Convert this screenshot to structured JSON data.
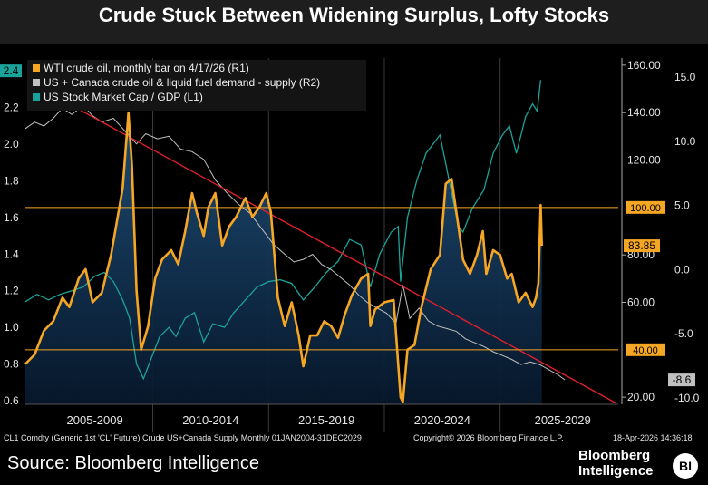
{
  "chart_data": {
    "type": "line",
    "title": "Crude Stuck Between Widening Surplus, Lofty Stocks",
    "x_categories": [
      "2005-2009",
      "2010-2014",
      "2015-2019",
      "2020-2024",
      "2025-2029"
    ],
    "axes": {
      "l1": {
        "ticks": [
          "2.2",
          "2.0",
          "1.8",
          "1.6",
          "1.4",
          "1.2",
          "1.0",
          "0.8",
          "0.6"
        ],
        "range": [
          0.58,
          2.47
        ]
      },
      "r1": {
        "ticks": [
          "160.00",
          "140.00",
          "120.00",
          "80.00",
          "60.00",
          "20.00"
        ],
        "range": [
          17,
          163
        ]
      },
      "r2": {
        "ticks": [
          "15.0",
          "10.0",
          "5.0",
          "0.0",
          "-5.0",
          "-10.0"
        ],
        "range": [
          -10.5,
          16.5
        ]
      }
    },
    "legend": [
      {
        "label": "WTI crude oil, monthly bar on 4/17/26 (R1)",
        "color": "#f5a623"
      },
      {
        "label": "US + Canada crude oil & liquid fuel demand - supply (R2)",
        "color": "#c0c0c0"
      },
      {
        "label": "US Stock Market Cap / GDP (L1)",
        "color": "#1aa39a"
      }
    ],
    "series": [
      {
        "name": "WTI crude oil, monthly bar on 4/17/26 (R1)",
        "axis": "r1",
        "color": "#f5a623",
        "points": [
          [
            2004.0,
            34
          ],
          [
            2004.4,
            38
          ],
          [
            2004.8,
            48
          ],
          [
            2005.2,
            52
          ],
          [
            2005.6,
            62
          ],
          [
            2005.9,
            58
          ],
          [
            2006.3,
            70
          ],
          [
            2006.6,
            74
          ],
          [
            2006.9,
            60
          ],
          [
            2007.3,
            64
          ],
          [
            2007.7,
            80
          ],
          [
            2007.95,
            94
          ],
          [
            2008.2,
            108
          ],
          [
            2008.45,
            140
          ],
          [
            2008.6,
            118
          ],
          [
            2008.8,
            65
          ],
          [
            2009.0,
            40
          ],
          [
            2009.3,
            50
          ],
          [
            2009.6,
            70
          ],
          [
            2009.9,
            78
          ],
          [
            2010.3,
            82
          ],
          [
            2010.6,
            76
          ],
          [
            2010.9,
            90
          ],
          [
            2011.2,
            106
          ],
          [
            2011.4,
            98
          ],
          [
            2011.7,
            88
          ],
          [
            2011.9,
            100
          ],
          [
            2012.2,
            106
          ],
          [
            2012.5,
            84
          ],
          [
            2012.8,
            92
          ],
          [
            2013.1,
            96
          ],
          [
            2013.5,
            104
          ],
          [
            2013.8,
            96
          ],
          [
            2014.1,
            100
          ],
          [
            2014.4,
            106
          ],
          [
            2014.6,
            98
          ],
          [
            2014.9,
            62
          ],
          [
            2015.2,
            50
          ],
          [
            2015.5,
            60
          ],
          [
            2015.8,
            46
          ],
          [
            2016.0,
            33
          ],
          [
            2016.3,
            46
          ],
          [
            2016.6,
            46
          ],
          [
            2016.9,
            52
          ],
          [
            2017.2,
            50
          ],
          [
            2017.5,
            45
          ],
          [
            2017.8,
            55
          ],
          [
            2018.1,
            63
          ],
          [
            2018.5,
            70
          ],
          [
            2018.8,
            72
          ],
          [
            2018.9,
            50
          ],
          [
            2019.1,
            57
          ],
          [
            2019.5,
            60
          ],
          [
            2019.9,
            61
          ],
          [
            2020.2,
            20
          ],
          [
            2020.3,
            18
          ],
          [
            2020.5,
            40
          ],
          [
            2020.8,
            42
          ],
          [
            2021.1,
            58
          ],
          [
            2021.5,
            74
          ],
          [
            2021.9,
            80
          ],
          [
            2022.15,
            110
          ],
          [
            2022.4,
            112
          ],
          [
            2022.7,
            92
          ],
          [
            2022.9,
            78
          ],
          [
            2023.2,
            72
          ],
          [
            2023.5,
            80
          ],
          [
            2023.75,
            90
          ],
          [
            2023.9,
            72
          ],
          [
            2024.2,
            82
          ],
          [
            2024.5,
            80
          ],
          [
            2024.8,
            70
          ],
          [
            2025.0,
            72
          ],
          [
            2025.3,
            60
          ],
          [
            2025.6,
            64
          ],
          [
            2025.9,
            58
          ],
          [
            2026.05,
            62
          ],
          [
            2026.15,
            68
          ],
          [
            2026.25,
            101
          ],
          [
            2026.3,
            83.85
          ]
        ]
      },
      {
        "name": "US + Canada crude oil & liquid fuel demand - supply (R2)",
        "axis": "r2",
        "color": "#c0c0c0",
        "points": [
          [
            2004.0,
            11.0
          ],
          [
            2004.4,
            11.5
          ],
          [
            2004.8,
            11.2
          ],
          [
            2005.2,
            11.8
          ],
          [
            2005.6,
            12.6
          ],
          [
            2006.0,
            12.1
          ],
          [
            2006.5,
            12.8
          ],
          [
            2006.9,
            12.0
          ],
          [
            2007.3,
            11.5
          ],
          [
            2007.8,
            11.8
          ],
          [
            2008.3,
            10.8
          ],
          [
            2008.8,
            9.8
          ],
          [
            2009.2,
            10.6
          ],
          [
            2009.7,
            10.2
          ],
          [
            2010.2,
            10.4
          ],
          [
            2010.7,
            9.4
          ],
          [
            2011.2,
            9.2
          ],
          [
            2011.7,
            8.6
          ],
          [
            2012.2,
            7.0
          ],
          [
            2012.7,
            6.0
          ],
          [
            2013.2,
            5.1
          ],
          [
            2013.7,
            4.4
          ],
          [
            2014.2,
            3.2
          ],
          [
            2014.7,
            2.0
          ],
          [
            2015.2,
            1.2
          ],
          [
            2015.6,
            0.6
          ],
          [
            2016.0,
            0.8
          ],
          [
            2016.4,
            1.2
          ],
          [
            2016.8,
            0.4
          ],
          [
            2017.2,
            0.0
          ],
          [
            2017.6,
            -0.6
          ],
          [
            2018.0,
            -1.2
          ],
          [
            2018.4,
            -2.0
          ],
          [
            2018.8,
            -2.6
          ],
          [
            2019.2,
            -3.0
          ],
          [
            2019.6,
            -3.4
          ],
          [
            2020.0,
            -4.2
          ],
          [
            2020.3,
            -1.2
          ],
          [
            2020.6,
            -3.8
          ],
          [
            2021.0,
            -3.0
          ],
          [
            2021.4,
            -4.0
          ],
          [
            2021.8,
            -4.4
          ],
          [
            2022.2,
            -4.6
          ],
          [
            2022.6,
            -4.8
          ],
          [
            2023.0,
            -5.4
          ],
          [
            2023.4,
            -5.7
          ],
          [
            2023.8,
            -6.0
          ],
          [
            2024.2,
            -6.4
          ],
          [
            2024.6,
            -6.7
          ],
          [
            2025.0,
            -7.0
          ],
          [
            2025.4,
            -7.4
          ],
          [
            2025.8,
            -7.2
          ],
          [
            2026.2,
            -7.4
          ],
          [
            2026.6,
            -7.8
          ],
          [
            2027.0,
            -8.2
          ],
          [
            2027.3,
            -8.6
          ]
        ]
      },
      {
        "name": "US Stock Market Cap / GDP (L1)",
        "axis": "l1",
        "color": "#1aa39a",
        "points": [
          [
            2004.0,
            1.14
          ],
          [
            2004.5,
            1.18
          ],
          [
            2005.0,
            1.15
          ],
          [
            2005.5,
            1.18
          ],
          [
            2006.0,
            1.2
          ],
          [
            2006.5,
            1.22
          ],
          [
            2007.0,
            1.28
          ],
          [
            2007.4,
            1.3
          ],
          [
            2007.8,
            1.25
          ],
          [
            2008.2,
            1.15
          ],
          [
            2008.5,
            1.05
          ],
          [
            2008.8,
            0.8
          ],
          [
            2009.1,
            0.72
          ],
          [
            2009.4,
            0.82
          ],
          [
            2009.8,
            0.95
          ],
          [
            2010.2,
            1.0
          ],
          [
            2010.5,
            0.95
          ],
          [
            2010.9,
            1.05
          ],
          [
            2011.3,
            1.08
          ],
          [
            2011.7,
            0.92
          ],
          [
            2012.1,
            1.02
          ],
          [
            2012.6,
            1.0
          ],
          [
            2013.0,
            1.08
          ],
          [
            2013.5,
            1.15
          ],
          [
            2014.0,
            1.22
          ],
          [
            2014.5,
            1.25
          ],
          [
            2015.0,
            1.26
          ],
          [
            2015.5,
            1.24
          ],
          [
            2016.0,
            1.15
          ],
          [
            2016.5,
            1.22
          ],
          [
            2017.0,
            1.3
          ],
          [
            2017.5,
            1.36
          ],
          [
            2018.0,
            1.48
          ],
          [
            2018.5,
            1.45
          ],
          [
            2018.9,
            1.22
          ],
          [
            2019.3,
            1.4
          ],
          [
            2019.8,
            1.52
          ],
          [
            2020.1,
            1.55
          ],
          [
            2020.2,
            1.25
          ],
          [
            2020.5,
            1.6
          ],
          [
            2020.9,
            1.8
          ],
          [
            2021.3,
            1.95
          ],
          [
            2021.9,
            2.05
          ],
          [
            2022.3,
            1.8
          ],
          [
            2022.7,
            1.55
          ],
          [
            2022.9,
            1.52
          ],
          [
            2023.3,
            1.65
          ],
          [
            2023.8,
            1.75
          ],
          [
            2024.2,
            1.95
          ],
          [
            2024.6,
            2.05
          ],
          [
            2024.9,
            2.1
          ],
          [
            2025.2,
            1.95
          ],
          [
            2025.6,
            2.15
          ],
          [
            2025.9,
            2.22
          ],
          [
            2026.1,
            2.18
          ],
          [
            2026.25,
            2.35
          ]
        ]
      }
    ],
    "reference_lines": [
      {
        "label": "100.00",
        "value": 100,
        "axis": "r1",
        "color": "#f5a623"
      },
      {
        "label": "40.00",
        "value": 40,
        "axis": "r1",
        "color": "#f5a623"
      }
    ],
    "trend_line": {
      "axis": "r2",
      "from": [
        2005.8,
        13.0
      ],
      "to": [
        2029.5,
        -10.4
      ],
      "color": "#e0202a"
    },
    "current_labels": [
      {
        "label": "2.4",
        "value": 2.4,
        "axis": "l1",
        "color": "#1aa39a"
      },
      {
        "label": "83.85",
        "value": 83.85,
        "axis": "r1",
        "color": "#f5a623"
      },
      {
        "label": "-8.6",
        "value": -8.6,
        "axis": "r2",
        "color": "#c0c0c0"
      }
    ]
  },
  "footer": {
    "left": "CL1 Comdty (Generic 1st 'CL' Future) Crude US+Canada Supply Monthly 01JAN2004-31DEC2029",
    "middle": "Copyright© 2026 Bloomberg Finance L.P.",
    "right": "18-Apr-2026 14:36:18"
  },
  "source": "Source: Bloomberg Intelligence",
  "brand": {
    "line1": "Bloomberg",
    "line2": "Intelligence",
    "logo": "BI"
  }
}
